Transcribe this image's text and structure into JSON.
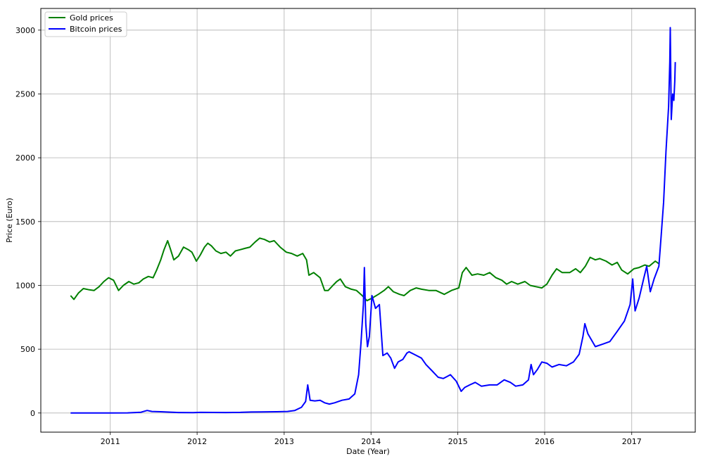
{
  "chart_data": {
    "type": "line",
    "xlabel": "Date (Year)",
    "ylabel": "Price (Euro)",
    "xlim": [
      "2010-03-15",
      "2017-09-25"
    ],
    "ylim": [
      -150,
      3170
    ],
    "x_ticks": [
      {
        "date": "2011-01-01",
        "label": "2011"
      },
      {
        "date": "2012-01-01",
        "label": "2012"
      },
      {
        "date": "2013-01-01",
        "label": "2013"
      },
      {
        "date": "2014-01-01",
        "label": "2014"
      },
      {
        "date": "2015-01-01",
        "label": "2015"
      },
      {
        "date": "2016-01-01",
        "label": "2016"
      },
      {
        "date": "2017-01-01",
        "label": "2017"
      }
    ],
    "y_ticks": [
      {
        "value": 0,
        "label": "0"
      },
      {
        "value": 500,
        "label": "500"
      },
      {
        "value": 1000,
        "label": "1000"
      },
      {
        "value": 1500,
        "label": "1500"
      },
      {
        "value": 2000,
        "label": "2000"
      },
      {
        "value": 2500,
        "label": "2500"
      },
      {
        "value": 3000,
        "label": "3000"
      }
    ],
    "grid": true,
    "legend_position": "top-left",
    "series": [
      {
        "name": "Gold prices",
        "color": "#008000",
        "points": [
          [
            "2010-07-18",
            920
          ],
          [
            "2010-08-01",
            890
          ],
          [
            "2010-08-20",
            940
          ],
          [
            "2010-09-10",
            975
          ],
          [
            "2010-10-05",
            965
          ],
          [
            "2010-10-25",
            960
          ],
          [
            "2010-11-15",
            990
          ],
          [
            "2010-12-05",
            1030
          ],
          [
            "2010-12-25",
            1060
          ],
          [
            "2011-01-15",
            1040
          ],
          [
            "2011-02-05",
            960
          ],
          [
            "2011-02-25",
            1000
          ],
          [
            "2011-03-20",
            1030
          ],
          [
            "2011-04-10",
            1010
          ],
          [
            "2011-05-01",
            1020
          ],
          [
            "2011-05-20",
            1050
          ],
          [
            "2011-06-10",
            1070
          ],
          [
            "2011-06-30",
            1060
          ],
          [
            "2011-07-15",
            1120
          ],
          [
            "2011-08-01",
            1200
          ],
          [
            "2011-08-15",
            1280
          ],
          [
            "2011-08-30",
            1350
          ],
          [
            "2011-09-10",
            1290
          ],
          [
            "2011-09-25",
            1200
          ],
          [
            "2011-10-15",
            1230
          ],
          [
            "2011-11-05",
            1300
          ],
          [
            "2011-11-25",
            1280
          ],
          [
            "2011-12-10",
            1260
          ],
          [
            "2011-12-29",
            1190
          ],
          [
            "2012-01-15",
            1240
          ],
          [
            "2012-02-01",
            1300
          ],
          [
            "2012-02-15",
            1330
          ],
          [
            "2012-03-01",
            1310
          ],
          [
            "2012-03-20",
            1270
          ],
          [
            "2012-04-10",
            1250
          ],
          [
            "2012-05-01",
            1260
          ],
          [
            "2012-05-20",
            1230
          ],
          [
            "2012-06-10",
            1270
          ],
          [
            "2012-07-01",
            1280
          ],
          [
            "2012-07-20",
            1290
          ],
          [
            "2012-08-10",
            1300
          ],
          [
            "2012-09-01",
            1340
          ],
          [
            "2012-09-20",
            1370
          ],
          [
            "2012-10-10",
            1360
          ],
          [
            "2012-11-01",
            1340
          ],
          [
            "2012-11-20",
            1350
          ],
          [
            "2012-12-15",
            1300
          ],
          [
            "2013-01-10",
            1260
          ],
          [
            "2013-02-01",
            1250
          ],
          [
            "2013-02-25",
            1230
          ],
          [
            "2013-03-20",
            1250
          ],
          [
            "2013-04-05",
            1200
          ],
          [
            "2013-04-15",
            1080
          ],
          [
            "2013-05-05",
            1100
          ],
          [
            "2013-06-01",
            1060
          ],
          [
            "2013-06-20",
            960
          ],
          [
            "2013-07-05",
            960
          ],
          [
            "2013-07-25",
            1000
          ],
          [
            "2013-08-10",
            1030
          ],
          [
            "2013-08-25",
            1050
          ],
          [
            "2013-09-15",
            990
          ],
          [
            "2013-10-10",
            970
          ],
          [
            "2013-11-01",
            960
          ],
          [
            "2013-11-25",
            920
          ],
          [
            "2013-12-15",
            880
          ],
          [
            "2014-01-05",
            900
          ],
          [
            "2014-02-01",
            930
          ],
          [
            "2014-02-25",
            960
          ],
          [
            "2014-03-15",
            990
          ],
          [
            "2014-04-05",
            950
          ],
          [
            "2014-05-01",
            930
          ],
          [
            "2014-05-20",
            920
          ],
          [
            "2014-06-15",
            960
          ],
          [
            "2014-07-10",
            980
          ],
          [
            "2014-08-01",
            970
          ],
          [
            "2014-09-01",
            960
          ],
          [
            "2014-10-01",
            960
          ],
          [
            "2014-11-05",
            930
          ],
          [
            "2014-12-05",
            960
          ],
          [
            "2015-01-05",
            980
          ],
          [
            "2015-01-20",
            1100
          ],
          [
            "2015-02-05",
            1140
          ],
          [
            "2015-03-01",
            1080
          ],
          [
            "2015-03-25",
            1090
          ],
          [
            "2015-04-20",
            1080
          ],
          [
            "2015-05-15",
            1100
          ],
          [
            "2015-06-10",
            1060
          ],
          [
            "2015-07-05",
            1040
          ],
          [
            "2015-07-25",
            1010
          ],
          [
            "2015-08-15",
            1030
          ],
          [
            "2015-09-10",
            1010
          ],
          [
            "2015-10-10",
            1030
          ],
          [
            "2015-11-01",
            1000
          ],
          [
            "2015-11-25",
            990
          ],
          [
            "2015-12-20",
            980
          ],
          [
            "2016-01-10",
            1010
          ],
          [
            "2016-02-01",
            1080
          ],
          [
            "2016-02-20",
            1130
          ],
          [
            "2016-03-15",
            1100
          ],
          [
            "2016-04-15",
            1100
          ],
          [
            "2016-05-10",
            1130
          ],
          [
            "2016-05-30",
            1100
          ],
          [
            "2016-06-20",
            1150
          ],
          [
            "2016-07-10",
            1220
          ],
          [
            "2016-08-01",
            1200
          ],
          [
            "2016-08-20",
            1210
          ],
          [
            "2016-09-15",
            1190
          ],
          [
            "2016-10-10",
            1160
          ],
          [
            "2016-11-01",
            1180
          ],
          [
            "2016-11-20",
            1120
          ],
          [
            "2016-12-15",
            1090
          ],
          [
            "2017-01-10",
            1130
          ],
          [
            "2017-02-01",
            1140
          ],
          [
            "2017-02-25",
            1160
          ],
          [
            "2017-03-15",
            1150
          ],
          [
            "2017-04-10",
            1190
          ],
          [
            "2017-04-25",
            1170
          ]
        ]
      },
      {
        "name": "Bitcoin prices",
        "color": "#0000ff",
        "points": [
          [
            "2010-07-18",
            0
          ],
          [
            "2010-10-01",
            0
          ],
          [
            "2011-01-01",
            0
          ],
          [
            "2011-03-15",
            1
          ],
          [
            "2011-05-10",
            6
          ],
          [
            "2011-06-05",
            20
          ],
          [
            "2011-06-25",
            12
          ],
          [
            "2011-08-01",
            10
          ],
          [
            "2011-10-15",
            4
          ],
          [
            "2011-12-15",
            3
          ],
          [
            "2012-01-15",
            5
          ],
          [
            "2012-05-01",
            4
          ],
          [
            "2012-07-01",
            5
          ],
          [
            "2012-08-15",
            8
          ],
          [
            "2012-10-01",
            9
          ],
          [
            "2012-12-01",
            10
          ],
          [
            "2013-01-15",
            12
          ],
          [
            "2013-02-15",
            20
          ],
          [
            "2013-03-15",
            45
          ],
          [
            "2013-04-01",
            90
          ],
          [
            "2013-04-10",
            220
          ],
          [
            "2013-04-20",
            100
          ],
          [
            "2013-05-10",
            95
          ],
          [
            "2013-06-01",
            100
          ],
          [
            "2013-06-20",
            80
          ],
          [
            "2013-07-10",
            70
          ],
          [
            "2013-08-01",
            80
          ],
          [
            "2013-09-01",
            100
          ],
          [
            "2013-10-01",
            110
          ],
          [
            "2013-10-25",
            150
          ],
          [
            "2013-11-10",
            300
          ],
          [
            "2013-11-20",
            550
          ],
          [
            "2013-11-30",
            850
          ],
          [
            "2013-12-04",
            1140
          ],
          [
            "2013-12-10",
            700
          ],
          [
            "2013-12-17",
            520
          ],
          [
            "2013-12-25",
            600
          ],
          [
            "2014-01-05",
            920
          ],
          [
            "2014-01-20",
            820
          ],
          [
            "2014-02-05",
            850
          ],
          [
            "2014-02-20",
            450
          ],
          [
            "2014-03-10",
            470
          ],
          [
            "2014-03-25",
            430
          ],
          [
            "2014-04-10",
            350
          ],
          [
            "2014-04-25",
            400
          ],
          [
            "2014-05-15",
            420
          ],
          [
            "2014-06-01",
            470
          ],
          [
            "2014-06-10",
            480
          ],
          [
            "2014-07-01",
            460
          ],
          [
            "2014-08-01",
            430
          ],
          [
            "2014-08-20",
            380
          ],
          [
            "2014-09-15",
            330
          ],
          [
            "2014-10-10",
            280
          ],
          [
            "2014-11-01",
            270
          ],
          [
            "2014-12-01",
            300
          ],
          [
            "2014-12-25",
            250
          ],
          [
            "2015-01-15",
            170
          ],
          [
            "2015-01-30",
            200
          ],
          [
            "2015-02-20",
            220
          ],
          [
            "2015-03-15",
            240
          ],
          [
            "2015-04-10",
            210
          ],
          [
            "2015-05-15",
            220
          ],
          [
            "2015-06-15",
            220
          ],
          [
            "2015-07-15",
            260
          ],
          [
            "2015-08-10",
            240
          ],
          [
            "2015-09-01",
            210
          ],
          [
            "2015-10-01",
            220
          ],
          [
            "2015-10-25",
            260
          ],
          [
            "2015-11-05",
            380
          ],
          [
            "2015-11-15",
            300
          ],
          [
            "2015-12-01",
            340
          ],
          [
            "2015-12-20",
            400
          ],
          [
            "2016-01-10",
            390
          ],
          [
            "2016-02-01",
            360
          ],
          [
            "2016-03-01",
            380
          ],
          [
            "2016-04-01",
            370
          ],
          [
            "2016-05-01",
            400
          ],
          [
            "2016-05-25",
            460
          ],
          [
            "2016-06-10",
            600
          ],
          [
            "2016-06-18",
            700
          ],
          [
            "2016-07-01",
            620
          ],
          [
            "2016-08-01",
            520
          ],
          [
            "2016-09-01",
            540
          ],
          [
            "2016-10-01",
            560
          ],
          [
            "2016-11-01",
            640
          ],
          [
            "2016-12-01",
            720
          ],
          [
            "2016-12-25",
            850
          ],
          [
            "2017-01-05",
            1050
          ],
          [
            "2017-01-15",
            800
          ],
          [
            "2017-02-01",
            900
          ],
          [
            "2017-02-20",
            1050
          ],
          [
            "2017-03-05",
            1150
          ],
          [
            "2017-03-20",
            950
          ],
          [
            "2017-04-05",
            1050
          ],
          [
            "2017-04-25",
            1150
          ],
          [
            "2017-05-05",
            1400
          ],
          [
            "2017-05-15",
            1650
          ],
          [
            "2017-05-25",
            2050
          ],
          [
            "2017-06-05",
            2400
          ],
          [
            "2017-06-10",
            2750
          ],
          [
            "2017-06-12",
            3020
          ],
          [
            "2017-06-16",
            2300
          ],
          [
            "2017-06-22",
            2500
          ],
          [
            "2017-06-27",
            2450
          ],
          [
            "2017-07-01",
            2600
          ],
          [
            "2017-07-03",
            2750
          ]
        ]
      }
    ]
  }
}
